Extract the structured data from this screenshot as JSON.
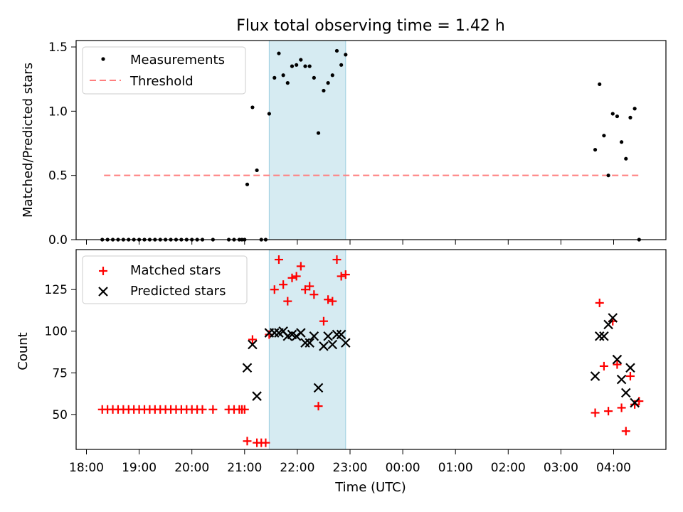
{
  "title": "Flux total observing time = 1.42 h",
  "xlabel": "Time (UTC)",
  "colors": {
    "measurement": "#000000",
    "threshold": "#ff7f7f",
    "matched": "#ff0000",
    "predicted": "#000000",
    "shade": "#add8e6"
  },
  "chart_data": [
    {
      "type": "scatter",
      "ylabel": "Matched/Predicted stars",
      "ylim": [
        0,
        1.55
      ],
      "yticks": [
        "0.0",
        "0.5",
        "1.0",
        "1.5"
      ],
      "ytick_values": [
        0,
        0.5,
        1.0,
        1.5
      ],
      "legend_placement": "top-left",
      "legend": [
        "Measurements",
        "Threshold"
      ],
      "threshold": {
        "value": 0.5,
        "x_start": "18:20",
        "x_end": "04:30"
      },
      "shaded_interval": [
        "21:28",
        "22:55"
      ],
      "measurements": [
        [
          "18:18",
          0
        ],
        [
          "18:24",
          0
        ],
        [
          "18:30",
          0
        ],
        [
          "18:36",
          0
        ],
        [
          "18:42",
          0
        ],
        [
          "18:48",
          0
        ],
        [
          "18:54",
          0
        ],
        [
          "19:00",
          0
        ],
        [
          "19:06",
          0
        ],
        [
          "19:12",
          0
        ],
        [
          "19:18",
          0
        ],
        [
          "19:24",
          0
        ],
        [
          "19:30",
          0
        ],
        [
          "19:36",
          0
        ],
        [
          "19:42",
          0
        ],
        [
          "19:48",
          0
        ],
        [
          "19:54",
          0
        ],
        [
          "20:00",
          0
        ],
        [
          "20:06",
          0
        ],
        [
          "20:12",
          0
        ],
        [
          "20:24",
          0
        ],
        [
          "20:42",
          0
        ],
        [
          "20:48",
          0
        ],
        [
          "20:54",
          0
        ],
        [
          "20:57",
          0
        ],
        [
          "21:00",
          0
        ],
        [
          "21:03",
          0.43
        ],
        [
          "21:09",
          1.03
        ],
        [
          "21:14",
          0.54
        ],
        [
          "21:19",
          0
        ],
        [
          "21:24",
          0
        ],
        [
          "21:28",
          0.98
        ],
        [
          "21:34",
          1.26
        ],
        [
          "21:39",
          1.45
        ],
        [
          "21:44",
          1.28
        ],
        [
          "21:49",
          1.22
        ],
        [
          "21:54",
          1.35
        ],
        [
          "21:59",
          1.36
        ],
        [
          "22:04",
          1.4
        ],
        [
          "22:09",
          1.35
        ],
        [
          "22:14",
          1.35
        ],
        [
          "22:19",
          1.26
        ],
        [
          "22:24",
          0.83
        ],
        [
          "22:30",
          1.16
        ],
        [
          "22:35",
          1.22
        ],
        [
          "22:40",
          1.28
        ],
        [
          "22:45",
          1.47
        ],
        [
          "22:50",
          1.36
        ],
        [
          "22:55",
          1.44
        ],
        [
          "03:39",
          0.7
        ],
        [
          "03:44",
          1.21
        ],
        [
          "03:49",
          0.81
        ],
        [
          "03:54",
          0.5
        ],
        [
          "03:59",
          0.98
        ],
        [
          "04:04",
          0.96
        ],
        [
          "04:09",
          0.76
        ],
        [
          "04:14",
          0.63
        ],
        [
          "04:19",
          0.95
        ],
        [
          "04:24",
          1.02
        ],
        [
          "04:29",
          0
        ]
      ]
    },
    {
      "type": "scatter",
      "ylabel": "Count",
      "ylim": [
        29,
        149
      ],
      "yticks": [
        "50",
        "75",
        "100",
        "125"
      ],
      "ytick_values": [
        50,
        75,
        100,
        125
      ],
      "legend_placement": "top-left",
      "legend": [
        "Matched stars",
        "Predicted stars"
      ],
      "shaded_interval": [
        "21:28",
        "22:55"
      ],
      "series": [
        {
          "name": "Matched stars",
          "points": [
            [
              "18:18",
              53
            ],
            [
              "18:24",
              53
            ],
            [
              "18:30",
              53
            ],
            [
              "18:36",
              53
            ],
            [
              "18:42",
              53
            ],
            [
              "18:48",
              53
            ],
            [
              "18:54",
              53
            ],
            [
              "19:00",
              53
            ],
            [
              "19:06",
              53
            ],
            [
              "19:12",
              53
            ],
            [
              "19:18",
              53
            ],
            [
              "19:24",
              53
            ],
            [
              "19:30",
              53
            ],
            [
              "19:36",
              53
            ],
            [
              "19:42",
              53
            ],
            [
              "19:48",
              53
            ],
            [
              "19:54",
              53
            ],
            [
              "20:00",
              53
            ],
            [
              "20:06",
              53
            ],
            [
              "20:12",
              53
            ],
            [
              "20:24",
              53
            ],
            [
              "20:42",
              53
            ],
            [
              "20:48",
              53
            ],
            [
              "20:54",
              53
            ],
            [
              "20:57",
              53
            ],
            [
              "21:00",
              53
            ],
            [
              "21:03",
              34
            ],
            [
              "21:09",
              95
            ],
            [
              "21:14",
              33
            ],
            [
              "21:19",
              33
            ],
            [
              "21:24",
              33
            ],
            [
              "21:28",
              98
            ],
            [
              "21:34",
              125
            ],
            [
              "21:39",
              143
            ],
            [
              "21:44",
              128
            ],
            [
              "21:49",
              118
            ],
            [
              "21:54",
              132
            ],
            [
              "21:59",
              133
            ],
            [
              "22:04",
              139
            ],
            [
              "22:09",
              125
            ],
            [
              "22:14",
              127
            ],
            [
              "22:19",
              122
            ],
            [
              "22:24",
              55
            ],
            [
              "22:30",
              106
            ],
            [
              "22:35",
              119
            ],
            [
              "22:40",
              118
            ],
            [
              "22:45",
              143
            ],
            [
              "22:50",
              133
            ],
            [
              "22:55",
              134
            ],
            [
              "03:39",
              51
            ],
            [
              "03:44",
              117
            ],
            [
              "03:49",
              79
            ],
            [
              "03:54",
              52
            ],
            [
              "03:59",
              106
            ],
            [
              "04:04",
              80
            ],
            [
              "04:09",
              54
            ],
            [
              "04:14",
              40
            ],
            [
              "04:19",
              73
            ],
            [
              "04:24",
              56
            ],
            [
              "04:29",
              58
            ]
          ]
        },
        {
          "name": "Predicted stars",
          "points": [
            [
              "21:03",
              78
            ],
            [
              "21:09",
              92
            ],
            [
              "21:14",
              61
            ],
            [
              "21:28",
              99
            ],
            [
              "21:34",
              99
            ],
            [
              "21:39",
              99
            ],
            [
              "21:44",
              100
            ],
            [
              "21:49",
              97
            ],
            [
              "21:54",
              98
            ],
            [
              "21:59",
              97
            ],
            [
              "22:04",
              99
            ],
            [
              "22:09",
              93
            ],
            [
              "22:14",
              93
            ],
            [
              "22:19",
              97
            ],
            [
              "22:24",
              66
            ],
            [
              "22:30",
              91
            ],
            [
              "22:35",
              97
            ],
            [
              "22:40",
              92
            ],
            [
              "22:45",
              98
            ],
            [
              "22:50",
              98
            ],
            [
              "22:55",
              93
            ],
            [
              "03:39",
              73
            ],
            [
              "03:44",
              97
            ],
            [
              "03:49",
              97
            ],
            [
              "03:54",
              104
            ],
            [
              "03:59",
              108
            ],
            [
              "04:04",
              83
            ],
            [
              "04:09",
              71
            ],
            [
              "04:14",
              63
            ],
            [
              "04:19",
              78
            ],
            [
              "04:24",
              57
            ]
          ]
        }
      ]
    }
  ],
  "xticks": [
    "18:00",
    "19:00",
    "20:00",
    "21:00",
    "22:00",
    "23:00",
    "00:00",
    "01:00",
    "02:00",
    "03:00",
    "04:00"
  ]
}
